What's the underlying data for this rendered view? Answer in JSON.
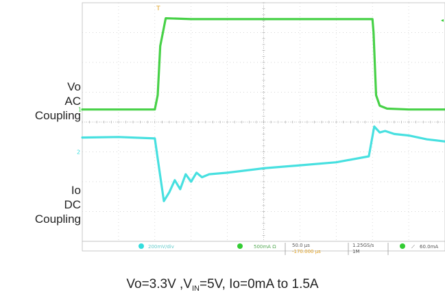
{
  "labels": {
    "vo": [
      "Vo",
      "AC",
      "Coupling"
    ],
    "io": [
      "Io",
      "DC",
      "Coupling"
    ]
  },
  "caption": {
    "part1": "Vo=3.3V ,V",
    "sub": "IN",
    "part2": "=5V, Io=0mA to 1.5A"
  },
  "status_bar": {
    "ch1_scale": "200mV/div",
    "ch2_scale": "500mA Ω",
    "timebase": "50.0 µs",
    "trigger_pos": "-170.000 µs",
    "sample_rate": "1.25GS/s",
    "record_length": "1M",
    "trigger_level": "60.0mA"
  },
  "colors": {
    "ch1": "#33cc33",
    "ch2": "#33dddd",
    "grid": "#c8c8c8",
    "trigger_marker": "#e0a020"
  },
  "chart_data": {
    "type": "line",
    "xlim": [
      0,
      10
    ],
    "ylim": [
      0,
      8
    ],
    "grid": true,
    "series": [
      {
        "channel": 1,
        "x": [
          0,
          1.0,
          2.0,
          2.08,
          2.15,
          2.3,
          3.0,
          5.0,
          7.0,
          8.0,
          8.03,
          8.1,
          8.2,
          8.4,
          9.0,
          10.0
        ],
        "y": [
          4.42,
          4.42,
          4.42,
          4.9,
          6.55,
          7.48,
          7.45,
          7.45,
          7.45,
          7.45,
          7.0,
          4.9,
          4.55,
          4.45,
          4.42,
          4.42
        ]
      },
      {
        "channel": 2,
        "x": [
          0,
          1.0,
          2.0,
          2.1,
          2.25,
          2.4,
          2.55,
          2.7,
          2.85,
          3.0,
          3.15,
          3.3,
          3.5,
          4.0,
          5.0,
          6.0,
          7.0,
          7.9,
          8.05,
          8.2,
          8.35,
          8.6,
          9.0,
          9.5,
          10.0
        ],
        "y": [
          3.48,
          3.5,
          3.45,
          2.6,
          1.35,
          1.65,
          2.05,
          1.75,
          2.25,
          2.0,
          2.3,
          2.15,
          2.25,
          2.3,
          2.45,
          2.55,
          2.65,
          2.85,
          3.85,
          3.65,
          3.7,
          3.6,
          3.55,
          3.42,
          3.35
        ]
      }
    ]
  }
}
